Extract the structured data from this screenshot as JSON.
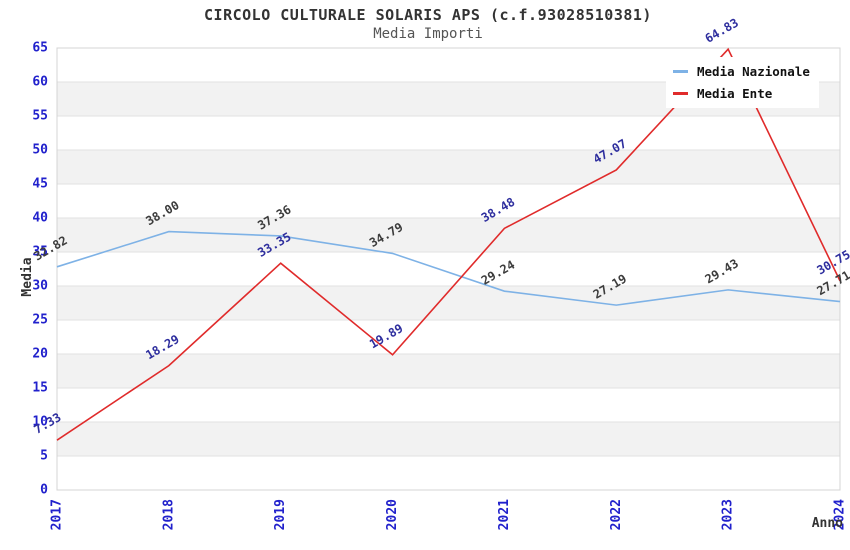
{
  "header": {
    "title": "CIRCOLO CULTURALE SOLARIS APS (c.f.93028510381)",
    "subtitle": "Media Importi"
  },
  "legend": {
    "items": [
      {
        "label": "Media Nazionale",
        "color": "#7eb2e6"
      },
      {
        "label": "Media Ente",
        "color": "#e02b2b"
      }
    ]
  },
  "chart_data": {
    "type": "line",
    "x": [
      "2017",
      "2018",
      "2019",
      "2020",
      "2021",
      "2022",
      "2023",
      "2024"
    ],
    "series": [
      {
        "name": "Media Nazionale",
        "color": "#7eb2e6",
        "label_color": "#3c3c3c",
        "values": [
          32.82,
          38.0,
          37.36,
          34.79,
          29.24,
          27.19,
          29.43,
          27.71
        ]
      },
      {
        "name": "Media Ente",
        "color": "#e02b2b",
        "label_color": "#2e2e9e",
        "values": [
          7.33,
          18.29,
          33.35,
          19.89,
          38.48,
          47.07,
          64.83,
          30.75
        ]
      }
    ],
    "title": "CIRCOLO CULTURALE SOLARIS APS (c.f.93028510381)",
    "subtitle": "Media Importi",
    "xlabel": "Anno",
    "ylabel": "Media",
    "ylim": [
      0,
      65
    ],
    "ytick_step": 5,
    "grid": true,
    "band_fill": "#f2f2f2",
    "grid_color": "#e2e2e2",
    "border_color": "#d4d4d4",
    "tick_label_color": "#2121cc",
    "legend_position": "top-right"
  }
}
